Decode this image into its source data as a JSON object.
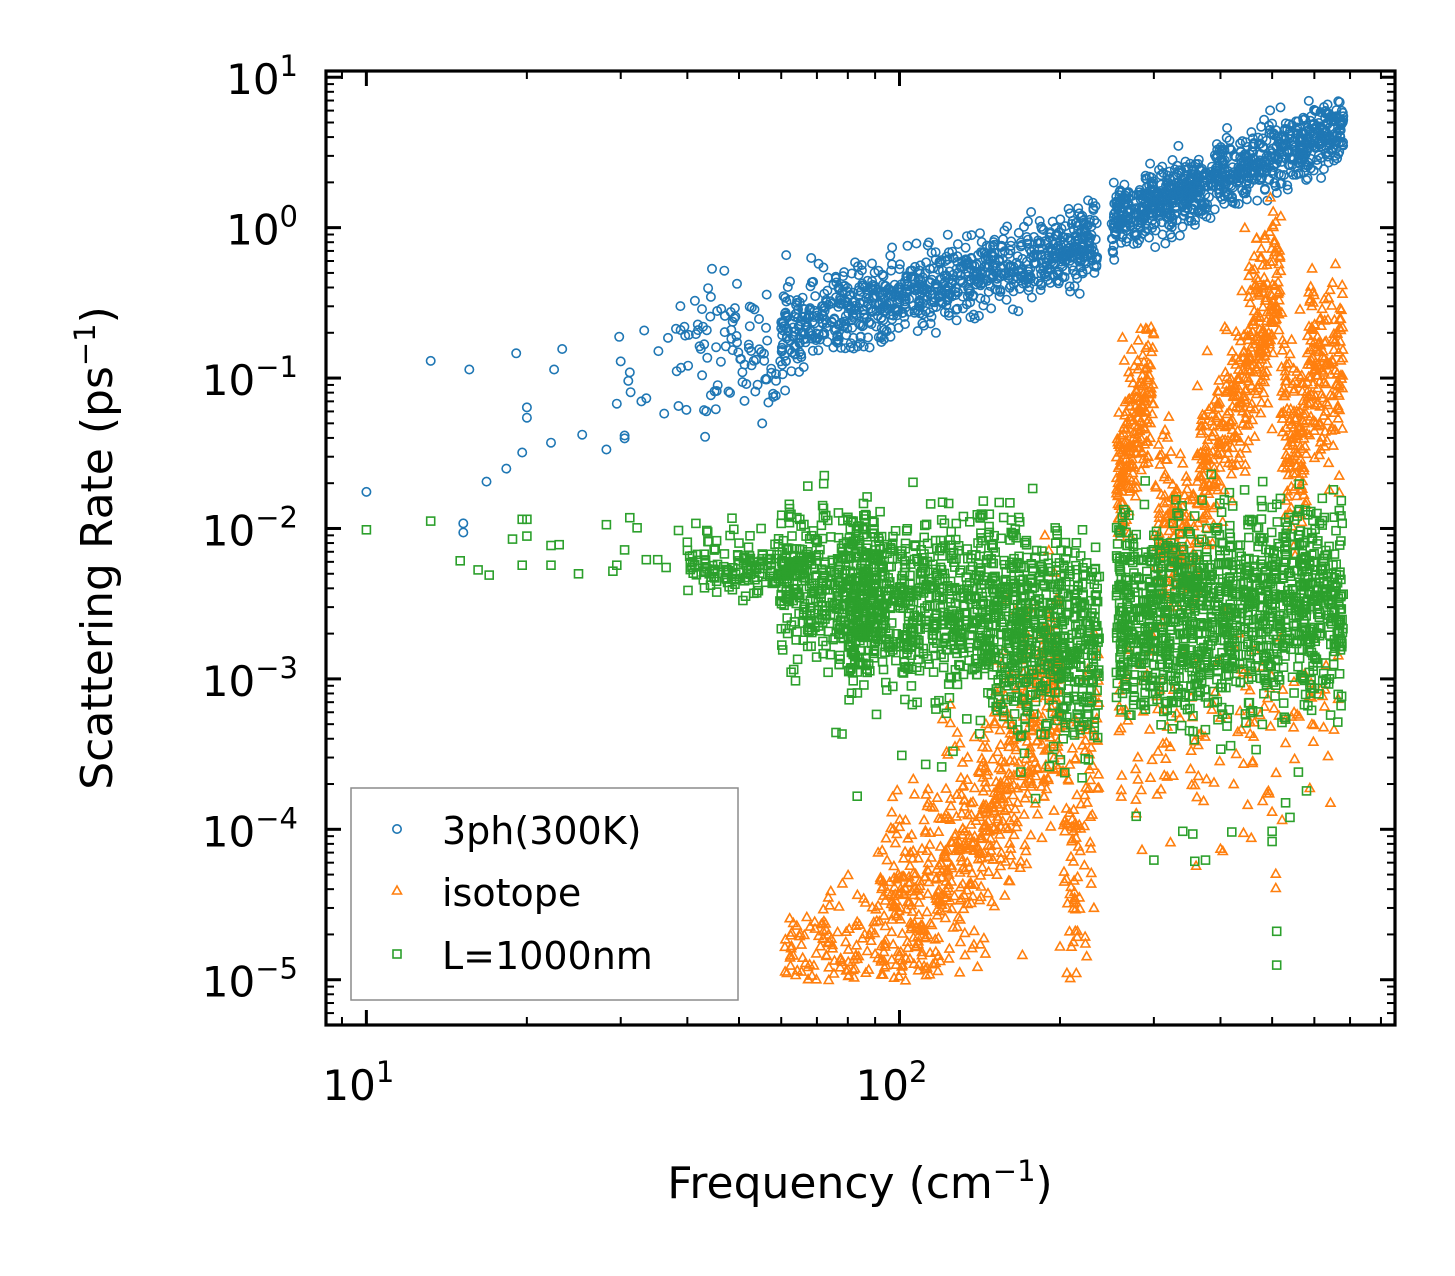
{
  "chart_data": {
    "type": "scatter",
    "title": "",
    "xlabel": {
      "text": "Frequency (cm",
      "sup": "−1",
      "suffix": ")"
    },
    "ylabel": {
      "text": "Scattering Rate (ps",
      "sup": "−1",
      "suffix": ")"
    },
    "xscale": "log",
    "yscale": "log",
    "xlim": [
      8.4,
      850
    ],
    "ylim": [
      5e-06,
      11
    ],
    "grid": false,
    "legend_position": "lower-left",
    "x_ticks": [
      {
        "value": 10,
        "base": "10",
        "exp": "1"
      },
      {
        "value": 100,
        "base": "10",
        "exp": "2"
      }
    ],
    "y_ticks": [
      {
        "value": 10,
        "base": "10",
        "exp": "1"
      },
      {
        "value": 1,
        "base": "10",
        "exp": "0"
      },
      {
        "value": 0.1,
        "base": "10",
        "exp": "−1"
      },
      {
        "value": 0.01,
        "base": "10",
        "exp": "−2"
      },
      {
        "value": 0.001,
        "base": "10",
        "exp": "−3"
      },
      {
        "value": 0.0001,
        "base": "10",
        "exp": "−4"
      },
      {
        "value": 1e-05,
        "base": "10",
        "exp": "−5"
      }
    ],
    "series": [
      {
        "name": "3ph(300K)",
        "marker": "circle",
        "color": "#1f77b4",
        "points": [
          [
            10.0,
            0.0175
          ],
          [
            13.2,
            0.13
          ],
          [
            15.6,
            0.114
          ],
          [
            15.2,
            0.0108
          ],
          [
            15.2,
            0.0094
          ],
          [
            16.8,
            0.0205
          ],
          [
            18.3,
            0.025
          ],
          [
            19.1,
            0.146
          ],
          [
            19.6,
            0.032
          ],
          [
            20.0,
            0.0638
          ],
          [
            20.0,
            0.0545
          ],
          [
            22.2,
            0.0372
          ],
          [
            22.5,
            0.114
          ],
          [
            23.3,
            0.156
          ],
          [
            25.4,
            0.042
          ],
          [
            28.2,
            0.0335
          ],
          [
            29.5,
            0.0675
          ],
          [
            30.5,
            0.0397
          ],
          [
            30.5,
            0.0415
          ],
          [
            31.0,
            0.0957
          ],
          [
            31.3,
            0.0805
          ],
          [
            32.8,
            0.07
          ],
          [
            33.5,
            0.0733
          ],
          [
            36.2,
            0.058
          ],
          [
            38.5,
            0.0652
          ],
          [
            29.8,
            0.188
          ],
          [
            30.0,
            0.129
          ],
          [
            31.2,
            0.109
          ],
          [
            33.2,
            0.207
          ],
          [
            35.3,
            0.151
          ],
          [
            36.8,
            0.185
          ],
          [
            38.2,
            0.111
          ],
          [
            39.5,
            0.219
          ],
          [
            41.5,
            0.196
          ],
          [
            42.4,
            0.156
          ],
          [
            43.5,
            0.208
          ],
          [
            45.4,
            0.082
          ],
          [
            45.6,
            0.0897
          ],
          [
            47.0,
            0.202
          ],
          [
            49.0,
            0.25
          ],
          [
            51.2,
            0.0705
          ],
          [
            54.5,
            0.247
          ],
          [
            56.0,
            0.098
          ],
          [
            58.0,
            0.075
          ],
          [
            60.0,
            0.215
          ],
          [
            61.0,
            0.0826
          ],
          [
            68.3,
            0.628
          ],
          [
            70.5,
            0.575
          ],
          [
            72.0,
            0.543
          ],
          [
            76.0,
            0.46
          ],
          [
            79.0,
            0.41
          ],
          [
            85.0,
            0.52
          ],
          [
            92.0,
            0.355
          ],
          [
            100.0,
            0.53
          ],
          [
            105.0,
            0.47
          ],
          [
            110.0,
            0.37
          ],
          [
            115.0,
            0.45
          ],
          [
            120.0,
            0.38
          ],
          [
            130.0,
            0.48
          ],
          [
            140.0,
            0.5
          ],
          [
            150.0,
            0.55
          ],
          [
            160.0,
            0.48
          ],
          [
            170.0,
            0.62
          ],
          [
            180.0,
            0.58
          ],
          [
            190.0,
            0.7
          ],
          [
            200.0,
            0.65
          ],
          [
            210.0,
            0.83
          ],
          [
            220.0,
            0.78
          ],
          [
            232.0,
            0.5
          ],
          [
            234.0,
            0.55
          ],
          [
            280.0,
            1.25
          ],
          [
            300.0,
            1.05
          ],
          [
            330.0,
            1.35
          ],
          [
            360.0,
            1.6
          ],
          [
            400.0,
            1.9
          ],
          [
            440.0,
            2.4
          ],
          [
            480.0,
            3.4
          ],
          [
            520.0,
            3.6
          ],
          [
            560.0,
            4.2
          ],
          [
            600.0,
            4.9
          ],
          [
            640.0,
            5.7
          ],
          [
            680.0,
            5.5
          ]
        ],
        "bands": [
          {
            "x": [
              38,
              62
            ],
            "y_center": [
              0.135,
              0.185
            ],
            "spread": 0.24,
            "count": 90
          },
          {
            "x": [
              60,
              235
            ],
            "y_center": [
              0.2,
              0.85
            ],
            "spread": 0.13,
            "count": 900
          },
          {
            "x": [
              250,
              680
            ],
            "y_center": [
              1.1,
              4.6
            ],
            "spread": 0.11,
            "count": 900
          }
        ]
      },
      {
        "name": "isotope",
        "marker": "triangle",
        "color": "#ff7f0e",
        "points": [
          [
            262.0,
            0.185
          ],
          [
            264.0,
            0.13
          ],
          [
            296.0,
            0.0785
          ],
          [
            312.0,
            0.0415
          ],
          [
            320.0,
            0.055
          ],
          [
            345.0,
            0.022
          ],
          [
            500.0,
            0.0455
          ],
          [
            520.0,
            0.058
          ],
          [
            545.0,
            0.0285
          ],
          [
            561.0,
            0.0218
          ],
          [
            614.0,
            0.0485
          ],
          [
            620.0,
            0.04
          ],
          [
            638.0,
            0.0271
          ],
          [
            640.0,
            0.018
          ],
          [
            668.0,
            0.0223
          ],
          [
            668.0,
            0.0172
          ],
          [
            285.0,
            7.25e-05
          ],
          [
            480.0,
            0.000153
          ],
          [
            500.0,
            0.00013
          ],
          [
            508.0,
            5.03e-05
          ],
          [
            508.0,
            4.04e-05
          ],
          [
            160.0,
            0.0001
          ],
          [
            100.0,
            4.8e-05
          ],
          [
            95.0,
            3.8e-05
          ],
          [
            130.0,
            2.5e-05
          ],
          [
            170.0,
            1.45e-05
          ],
          [
            200.0,
            1.65e-05
          ]
        ],
        "bands": [
          {
            "x": [
              60,
              92
            ],
            "y_center": [
              1.1e-05,
              2.2e-05
            ],
            "spread": 0.22,
            "count": 140
          },
          {
            "x": [
              92,
              140
            ],
            "y_center": [
              2e-05,
              8e-05
            ],
            "spread": 0.38,
            "count": 360
          },
          {
            "x": [
              140,
              200
            ],
            "y_center": [
              8e-05,
              0.0012
            ],
            "spread": 0.4,
            "count": 360
          },
          {
            "x": [
              200,
              237
            ],
            "y_center": [
              5e-05,
              0.0003
            ],
            "spread": 0.45,
            "count": 110
          },
          {
            "x": [
              255,
              300
            ],
            "y_center": [
              0.02,
              0.1
            ],
            "spread": 0.25,
            "count": 200
          },
          {
            "x": [
              300,
              360
            ],
            "y_center": [
              0.012,
              0.008
            ],
            "spread": 0.25,
            "count": 140
          },
          {
            "x": [
              360,
              440
            ],
            "y_center": [
              0.02,
              0.08
            ],
            "spread": 0.3,
            "count": 180
          },
          {
            "x": [
              440,
              520
            ],
            "y_center": [
              0.12,
              0.5
            ],
            "spread": 0.3,
            "count": 200
          },
          {
            "x": [
              520,
              580
            ],
            "y_center": [
              0.05,
              0.03
            ],
            "spread": 0.3,
            "count": 120
          },
          {
            "x": [
              580,
              680
            ],
            "y_center": [
              0.1,
              0.15
            ],
            "spread": 0.3,
            "count": 160
          },
          {
            "x": [
              255,
              680
            ],
            "y_center": [
              0.0004,
              0.0005
            ],
            "spread": 0.35,
            "count": 150
          }
        ]
      },
      {
        "name": "L=1000nm",
        "marker": "square",
        "color": "#2ca02c",
        "points": [
          [
            10.0,
            0.0098
          ],
          [
            13.2,
            0.0112
          ],
          [
            15.0,
            0.0061
          ],
          [
            16.2,
            0.0053
          ],
          [
            17.0,
            0.0049
          ],
          [
            18.8,
            0.0085
          ],
          [
            19.6,
            0.0057
          ],
          [
            19.6,
            0.0115
          ],
          [
            20.0,
            0.0115
          ],
          [
            20.0,
            0.0089
          ],
          [
            22.2,
            0.0057
          ],
          [
            22.2,
            0.0077
          ],
          [
            23.0,
            0.0078
          ],
          [
            25.0,
            0.005
          ],
          [
            28.2,
            0.0106
          ],
          [
            29.0,
            0.0052
          ],
          [
            29.5,
            0.0057
          ],
          [
            30.5,
            0.0072
          ],
          [
            31.2,
            0.0118
          ],
          [
            32.2,
            0.0101
          ],
          [
            33.5,
            0.0062
          ],
          [
            35.2,
            0.0062
          ],
          [
            36.5,
            0.0055
          ],
          [
            38.5,
            0.0097
          ],
          [
            40.0,
            0.0081
          ],
          [
            41.5,
            0.0108
          ],
          [
            43.5,
            0.0097
          ],
          [
            45.0,
            0.0053
          ],
          [
            48.5,
            0.0117
          ],
          [
            50.0,
            0.008
          ],
          [
            55.0,
            0.01
          ],
          [
            60.0,
            0.0108
          ],
          [
            65.0,
            0.0115
          ],
          [
            72.0,
            0.0118
          ],
          [
            80.0,
            0.0115
          ],
          [
            84.0,
            0.0104
          ],
          [
            120.0,
            0.0114
          ],
          [
            162.0,
            0.0094
          ],
          [
            480.0,
            0.0205
          ],
          [
            500.0,
            0.0138
          ],
          [
            530.0,
            0.011
          ],
          [
            480.0,
            0.0082
          ],
          [
            83.3,
            0.000166
          ],
          [
            78.0,
            0.00043
          ],
          [
            76.0,
            0.00044
          ],
          [
            101.0,
            0.00031
          ],
          [
            112.0,
            0.00027
          ],
          [
            120.0,
            0.00026
          ],
          [
            126.0,
            0.00033
          ],
          [
            180.0,
            0.00016
          ],
          [
            220.0,
            0.00022
          ],
          [
            278.0,
            0.000122
          ],
          [
            300.0,
            6.24e-05
          ],
          [
            340.0,
            9.7e-05
          ],
          [
            355.0,
            9.3e-05
          ],
          [
            358.0,
            6.13e-05
          ],
          [
            375.0,
            6.24e-05
          ],
          [
            420.0,
            9.6e-05
          ],
          [
            500.0,
            9.7e-05
          ],
          [
            500.0,
            8.3e-05
          ],
          [
            510.0,
            2.1e-05
          ],
          [
            510.0,
            1.25e-05
          ],
          [
            530.0,
            0.00015
          ],
          [
            540.0,
            0.00012
          ],
          [
            560.0,
            0.00024
          ],
          [
            580.0,
            0.00018
          ]
        ],
        "bands": [
          {
            "x": [
              40,
              68
            ],
            "y_center": [
              0.0057,
              0.0055
            ],
            "spread": 0.1,
            "count": 180
          },
          {
            "x": [
              60,
              95
            ],
            "y_center": [
              0.005,
              0.003
            ],
            "spread": 0.26,
            "count": 400
          },
          {
            "x": [
              80,
              140
            ],
            "y_center": [
              0.0035,
              0.0028
            ],
            "spread": 0.3,
            "count": 550
          },
          {
            "x": [
              140,
              237
            ],
            "y_center": [
              0.0028,
              0.0016
            ],
            "spread": 0.34,
            "count": 700
          },
          {
            "x": [
              255,
              680
            ],
            "y_center": [
              0.0025,
              0.0032
            ],
            "spread": 0.34,
            "count": 1300
          }
        ]
      }
    ]
  }
}
